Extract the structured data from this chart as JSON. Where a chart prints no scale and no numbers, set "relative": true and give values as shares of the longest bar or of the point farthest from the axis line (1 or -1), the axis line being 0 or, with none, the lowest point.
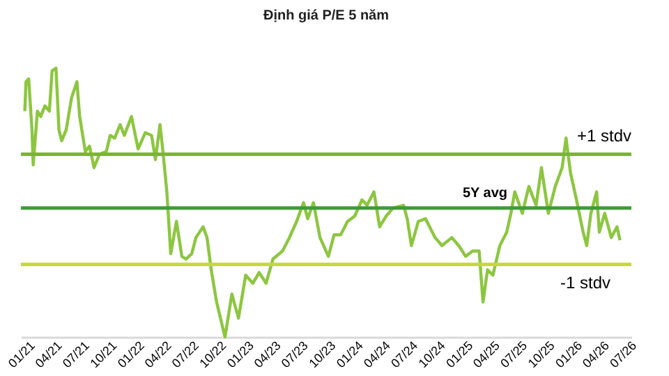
{
  "chart_data": {
    "type": "line",
    "title": "Định giá P/E 5 năm",
    "relative": true,
    "legend": false,
    "tick_labels": "x",
    "line_style": "solid",
    "marker": "none",
    "xlim": [
      "2021-01-01",
      "2026-07-31"
    ],
    "xticks": [
      {
        "value": "2021-01-01",
        "label": "01/21"
      },
      {
        "value": "2021-04-01",
        "label": "04/21"
      },
      {
        "value": "2021-07-01",
        "label": "07/21"
      },
      {
        "value": "2021-10-01",
        "label": "10/21"
      },
      {
        "value": "2022-01-01",
        "label": "01/22"
      },
      {
        "value": "2022-04-01",
        "label": "04/22"
      },
      {
        "value": "2022-07-01",
        "label": "07/22"
      },
      {
        "value": "2022-10-01",
        "label": "10/22"
      },
      {
        "value": "2023-01-01",
        "label": "01/23"
      },
      {
        "value": "2023-04-01",
        "label": "04/23"
      },
      {
        "value": "2023-07-01",
        "label": "07/23"
      },
      {
        "value": "2023-10-01",
        "label": "10/23"
      },
      {
        "value": "2024-01-01",
        "label": "01/24"
      },
      {
        "value": "2024-04-01",
        "label": "04/24"
      },
      {
        "value": "2024-07-01",
        "label": "07/24"
      },
      {
        "value": "2024-10-01",
        "label": "10/24"
      },
      {
        "value": "2025-01-01",
        "label": "01/25"
      },
      {
        "value": "2025-04-01",
        "label": "04/25"
      },
      {
        "value": "2025-07-01",
        "label": "07/25"
      },
      {
        "value": "2025-10-01",
        "label": "10/25"
      },
      {
        "value": "2026-01-01",
        "label": "01/26"
      },
      {
        "value": "2026-04-01",
        "label": "04/26"
      },
      {
        "value": "2026-07-01",
        "label": "07/26"
      }
    ],
    "x": [
      "2021-01-14",
      "2021-01-18",
      "2021-01-27",
      "2021-02-07",
      "2021-02-11",
      "2021-02-25",
      "2021-03-08",
      "2021-03-22",
      "2021-04-06",
      "2021-04-15",
      "2021-04-28",
      "2021-05-08",
      "2021-05-17",
      "2021-06-01",
      "2021-06-19",
      "2021-07-07",
      "2021-07-16",
      "2021-08-04",
      "2021-08-18",
      "2021-09-02",
      "2021-09-20",
      "2021-10-13",
      "2021-10-26",
      "2021-11-10",
      "2021-11-28",
      "2021-12-12",
      "2022-01-05",
      "2022-01-27",
      "2022-02-20",
      "2022-03-13",
      "2022-03-26",
      "2022-04-10",
      "2022-04-19",
      "2022-05-03",
      "2022-05-16",
      "2022-06-04",
      "2022-06-22",
      "2022-07-06",
      "2022-07-25",
      "2022-08-08",
      "2022-09-01",
      "2022-09-14",
      "2022-09-28",
      "2022-10-16",
      "2022-11-13",
      "2022-12-06",
      "2022-12-28",
      "2023-01-21",
      "2023-02-14",
      "2023-03-07",
      "2023-03-30",
      "2023-04-22",
      "2023-05-24",
      "2023-06-16",
      "2023-07-10",
      "2023-08-02",
      "2023-08-16",
      "2023-09-04",
      "2023-09-26",
      "2023-10-24",
      "2023-11-12",
      "2023-12-04",
      "2023-12-27",
      "2024-01-20",
      "2024-02-13",
      "2024-03-01",
      "2024-03-24",
      "2024-04-12",
      "2024-05-04",
      "2024-05-27",
      "2024-07-01",
      "2024-07-13",
      "2024-07-27",
      "2024-08-19",
      "2024-09-12",
      "2024-10-14",
      "2024-11-06",
      "2024-12-09",
      "2025-01-01",
      "2025-01-24",
      "2025-02-16",
      "2025-03-10",
      "2025-03-23",
      "2025-04-07",
      "2025-04-25",
      "2025-05-18",
      "2025-06-10",
      "2025-06-24",
      "2025-07-07",
      "2025-08-01",
      "2025-08-23",
      "2025-09-16",
      "2025-10-04",
      "2025-10-27",
      "2025-11-19",
      "2025-12-12",
      "2025-12-25",
      "2026-01-09",
      "2026-01-27",
      "2026-02-20",
      "2026-03-04",
      "2026-03-18",
      "2026-04-06",
      "2026-04-15",
      "2026-05-03",
      "2026-05-25",
      "2026-06-13",
      "2026-06-23"
    ],
    "series": [
      {
        "color": "#8cc63f",
        "values": [
          0.84,
          0.95,
          0.96,
          0.77,
          0.64,
          0.84,
          0.82,
          0.86,
          0.84,
          0.99,
          1.0,
          0.77,
          0.73,
          0.77,
          0.89,
          0.95,
          0.82,
          0.69,
          0.71,
          0.63,
          0.68,
          0.69,
          0.75,
          0.74,
          0.79,
          0.75,
          0.82,
          0.7,
          0.76,
          0.75,
          0.66,
          0.79,
          0.7,
          0.54,
          0.31,
          0.43,
          0.3,
          0.29,
          0.31,
          0.37,
          0.41,
          0.37,
          0.25,
          0.13,
          0.0,
          0.16,
          0.07,
          0.23,
          0.2,
          0.24,
          0.2,
          0.29,
          0.32,
          0.37,
          0.43,
          0.5,
          0.44,
          0.5,
          0.37,
          0.3,
          0.38,
          0.38,
          0.43,
          0.45,
          0.51,
          0.49,
          0.54,
          0.41,
          0.45,
          0.48,
          0.49,
          0.44,
          0.34,
          0.43,
          0.44,
          0.37,
          0.34,
          0.37,
          0.34,
          0.3,
          0.32,
          0.32,
          0.13,
          0.25,
          0.23,
          0.34,
          0.39,
          0.46,
          0.54,
          0.46,
          0.56,
          0.49,
          0.63,
          0.46,
          0.56,
          0.63,
          0.74,
          0.61,
          0.52,
          0.39,
          0.34,
          0.46,
          0.54,
          0.39,
          0.46,
          0.37,
          0.41,
          0.36
        ]
      }
    ],
    "ref_lines": [
      {
        "axis": "y",
        "value": 0.68,
        "label": "+1 stdv",
        "color": "#7cb52f"
      },
      {
        "axis": "y",
        "value": 0.48,
        "label": "5Y avg",
        "color": "#3f9b3a"
      },
      {
        "axis": "y",
        "value": 0.27,
        "label": "-1 stdv",
        "color": "#c5d83a"
      }
    ]
  }
}
